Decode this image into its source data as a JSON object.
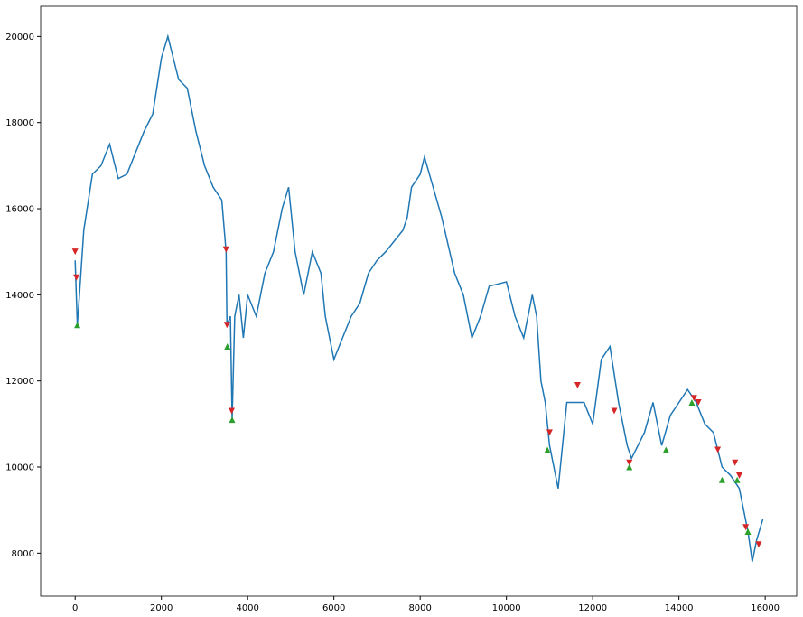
{
  "chart_data": {
    "type": "line",
    "xlim": [
      -800,
      16730
    ],
    "ylim": [
      7000,
      20700
    ],
    "xticks": [
      0,
      2000,
      4000,
      6000,
      8000,
      10000,
      12000,
      14000,
      16000
    ],
    "yticks": [
      8000,
      10000,
      12000,
      14000,
      16000,
      18000,
      20000
    ],
    "series": [
      {
        "color": "#1f77b4",
        "marker": "none",
        "x": [
          0,
          50,
          100,
          200,
          400,
          600,
          800,
          1000,
          1200,
          1600,
          1800,
          2000,
          2150,
          2400,
          2600,
          2800,
          3000,
          3200,
          3400,
          3500,
          3520,
          3600,
          3640,
          3700,
          3800,
          3900,
          4000,
          4200,
          4400,
          4600,
          4800,
          4950,
          5100,
          5300,
          5500,
          5700,
          5800,
          6000,
          6200,
          6400,
          6600,
          6800,
          7000,
          7200,
          7600,
          7700,
          7800,
          8000,
          8100,
          8300,
          8500,
          8800,
          9000,
          9200,
          9400,
          9600,
          10000,
          10200,
          10400,
          10600,
          10700,
          10800,
          10900,
          11000,
          11200,
          11400,
          11600,
          11800,
          12000,
          12200,
          12400,
          12600,
          12800,
          12900,
          13200,
          13400,
          13600,
          13800,
          14000,
          14200,
          14400,
          14600,
          14800,
          15000,
          15200,
          15400,
          15600,
          15700,
          15800,
          15950
        ],
        "values": [
          14800,
          13300,
          14000,
          15500,
          16800,
          17000,
          17500,
          16700,
          16800,
          17800,
          18200,
          19500,
          20000,
          19000,
          18800,
          17800,
          17000,
          16500,
          16200,
          15000,
          13300,
          13500,
          11100,
          13500,
          14000,
          13000,
          14000,
          13500,
          14500,
          15000,
          16000,
          16500,
          15000,
          14000,
          15000,
          14500,
          13500,
          12500,
          13000,
          13500,
          13800,
          14500,
          14800,
          15000,
          15500,
          15800,
          16500,
          16800,
          17200,
          16500,
          15800,
          14500,
          14000,
          13000,
          13500,
          14200,
          14300,
          13500,
          13000,
          14000,
          13500,
          12000,
          11500,
          10500,
          9500,
          11500,
          11500,
          11500,
          11000,
          12500,
          12800,
          11500,
          10500,
          10200,
          10800,
          11500,
          10500,
          11200,
          11500,
          11800,
          11500,
          11000,
          10800,
          10000,
          9800,
          9500,
          8500,
          7800,
          8300,
          8800
        ]
      },
      {
        "color": "#d62728",
        "marker": "triangle-down",
        "x": [
          0,
          30,
          3500,
          3520,
          3630,
          11000,
          11650,
          12500,
          12850,
          14350,
          14450,
          14900,
          15300,
          15400,
          15550,
          15850
        ],
        "values": [
          15000,
          14400,
          15050,
          13300,
          11300,
          10800,
          11900,
          11300,
          10100,
          11600,
          11500,
          10400,
          10100,
          9800,
          8600,
          8200
        ]
      },
      {
        "color": "#2ca02c",
        "marker": "triangle-up",
        "x": [
          50,
          3530,
          3640,
          10950,
          12850,
          13700,
          14300,
          15000,
          15350,
          15600
        ],
        "values": [
          13300,
          12800,
          11100,
          10400,
          10000,
          10400,
          11500,
          9700,
          9700,
          8500
        ]
      }
    ]
  }
}
